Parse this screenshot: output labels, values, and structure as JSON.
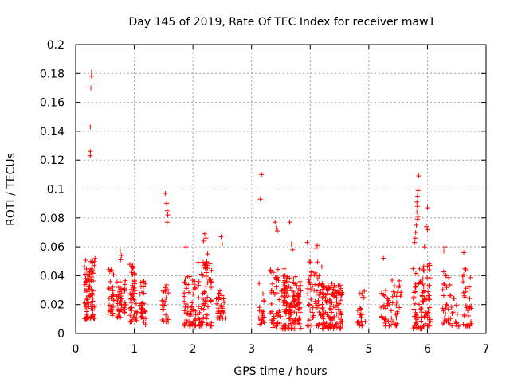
{
  "chart_data": {
    "type": "scatter",
    "title": "Day 145 of 2019, Rate Of TEC Index for receiver maw1",
    "xlabel": "GPS time / hours",
    "ylabel": "ROTI / TECUs",
    "xlim": [
      0,
      7
    ],
    "ylim": [
      0,
      0.2
    ],
    "xticks": [
      0,
      1,
      2,
      3,
      4,
      5,
      6,
      7
    ],
    "yticks": [
      0,
      0.02,
      0.04,
      0.06,
      0.08,
      0.1,
      0.12,
      0.14,
      0.16,
      0.18,
      0.2
    ],
    "x_tick_labels": [
      "0",
      "1",
      "2",
      "3",
      "4",
      "5",
      "6",
      "7"
    ],
    "y_tick_labels": [
      "0",
      "0.02",
      "0.04",
      "0.06",
      "0.08",
      "0.1",
      "0.12",
      "0.14",
      "0.16",
      "0.18",
      "0.2"
    ],
    "grid": true,
    "marker": "+",
    "series_color": "#ff0000",
    "clusters": [
      {
        "x": [
          0.15,
          0.33
        ],
        "y": [
          0.01,
          0.052
        ],
        "n": 90
      },
      {
        "x": [
          0.55,
          0.65
        ],
        "y": [
          0.012,
          0.045
        ],
        "n": 30
      },
      {
        "x": [
          0.7,
          0.85
        ],
        "y": [
          0.01,
          0.04
        ],
        "n": 45
      },
      {
        "x": [
          0.92,
          1.05
        ],
        "y": [
          0.008,
          0.048
        ],
        "n": 50
      },
      {
        "x": [
          1.08,
          1.2
        ],
        "y": [
          0.005,
          0.038
        ],
        "n": 30
      },
      {
        "x": [
          1.47,
          1.58
        ],
        "y": [
          0.008,
          0.034
        ],
        "n": 25
      },
      {
        "x": [
          1.85,
          2.05
        ],
        "y": [
          0.005,
          0.04
        ],
        "n": 60
      },
      {
        "x": [
          2.08,
          2.32
        ],
        "y": [
          0.005,
          0.05
        ],
        "n": 70
      },
      {
        "x": [
          2.4,
          2.55
        ],
        "y": [
          0.01,
          0.03
        ],
        "n": 30
      },
      {
        "x": [
          3.12,
          3.22
        ],
        "y": [
          0.005,
          0.035
        ],
        "n": 20
      },
      {
        "x": [
          3.3,
          3.6
        ],
        "y": [
          0.003,
          0.045
        ],
        "n": 70
      },
      {
        "x": [
          3.55,
          3.85
        ],
        "y": [
          0.003,
          0.04
        ],
        "n": 120
      },
      {
        "x": [
          3.95,
          4.2
        ],
        "y": [
          0.005,
          0.05
        ],
        "n": 60
      },
      {
        "x": [
          4.2,
          4.55
        ],
        "y": [
          0.003,
          0.035
        ],
        "n": 130
      },
      {
        "x": [
          4.8,
          4.95
        ],
        "y": [
          0.005,
          0.03
        ],
        "n": 25
      },
      {
        "x": [
          5.2,
          5.35
        ],
        "y": [
          0.005,
          0.03
        ],
        "n": 25
      },
      {
        "x": [
          5.38,
          5.55
        ],
        "y": [
          0.005,
          0.04
        ],
        "n": 30
      },
      {
        "x": [
          5.75,
          5.95
        ],
        "y": [
          0.003,
          0.045
        ],
        "n": 55
      },
      {
        "x": [
          5.92,
          6.05
        ],
        "y": [
          0.005,
          0.05
        ],
        "n": 40
      },
      {
        "x": [
          6.25,
          6.4
        ],
        "y": [
          0.005,
          0.045
        ],
        "n": 30
      },
      {
        "x": [
          6.4,
          6.55
        ],
        "y": [
          0.005,
          0.025
        ],
        "n": 15
      },
      {
        "x": [
          6.6,
          6.75
        ],
        "y": [
          0.005,
          0.045
        ],
        "n": 35
      }
    ],
    "points": [
      {
        "x": 0.27,
        "y": 0.181
      },
      {
        "x": 0.27,
        "y": 0.178
      },
      {
        "x": 0.26,
        "y": 0.17
      },
      {
        "x": 0.25,
        "y": 0.143
      },
      {
        "x": 0.25,
        "y": 0.126
      },
      {
        "x": 0.25,
        "y": 0.123
      },
      {
        "x": 1.53,
        "y": 0.097
      },
      {
        "x": 1.55,
        "y": 0.09
      },
      {
        "x": 1.56,
        "y": 0.085
      },
      {
        "x": 1.57,
        "y": 0.082
      },
      {
        "x": 1.56,
        "y": 0.077
      },
      {
        "x": 3.17,
        "y": 0.11
      },
      {
        "x": 3.15,
        "y": 0.093
      },
      {
        "x": 3.4,
        "y": 0.077
      },
      {
        "x": 3.42,
        "y": 0.073
      },
      {
        "x": 3.44,
        "y": 0.071
      },
      {
        "x": 3.65,
        "y": 0.077
      },
      {
        "x": 5.85,
        "y": 0.109
      },
      {
        "x": 5.84,
        "y": 0.099
      },
      {
        "x": 5.83,
        "y": 0.095
      },
      {
        "x": 5.82,
        "y": 0.091
      },
      {
        "x": 5.83,
        "y": 0.088
      },
      {
        "x": 5.82,
        "y": 0.084
      },
      {
        "x": 5.84,
        "y": 0.081
      },
      {
        "x": 5.83,
        "y": 0.079
      },
      {
        "x": 5.81,
        "y": 0.075
      },
      {
        "x": 5.8,
        "y": 0.07
      },
      {
        "x": 5.79,
        "y": 0.066
      },
      {
        "x": 5.78,
        "y": 0.063
      },
      {
        "x": 6.0,
        "y": 0.087
      },
      {
        "x": 5.98,
        "y": 0.074
      },
      {
        "x": 6.0,
        "y": 0.072
      },
      {
        "x": 0.76,
        "y": 0.057
      },
      {
        "x": 0.78,
        "y": 0.054
      },
      {
        "x": 0.77,
        "y": 0.051
      },
      {
        "x": 2.2,
        "y": 0.069
      },
      {
        "x": 2.22,
        "y": 0.066
      },
      {
        "x": 2.18,
        "y": 0.064
      },
      {
        "x": 2.48,
        "y": 0.067
      },
      {
        "x": 2.5,
        "y": 0.062
      },
      {
        "x": 1.88,
        "y": 0.06
      },
      {
        "x": 2.25,
        "y": 0.055
      },
      {
        "x": 3.95,
        "y": 0.063
      },
      {
        "x": 4.12,
        "y": 0.061
      },
      {
        "x": 4.1,
        "y": 0.059
      },
      {
        "x": 3.68,
        "y": 0.062
      },
      {
        "x": 3.7,
        "y": 0.058
      },
      {
        "x": 5.25,
        "y": 0.052
      },
      {
        "x": 6.3,
        "y": 0.06
      },
      {
        "x": 6.28,
        "y": 0.057
      },
      {
        "x": 6.62,
        "y": 0.056
      },
      {
        "x": 5.95,
        "y": 0.06
      }
    ]
  }
}
